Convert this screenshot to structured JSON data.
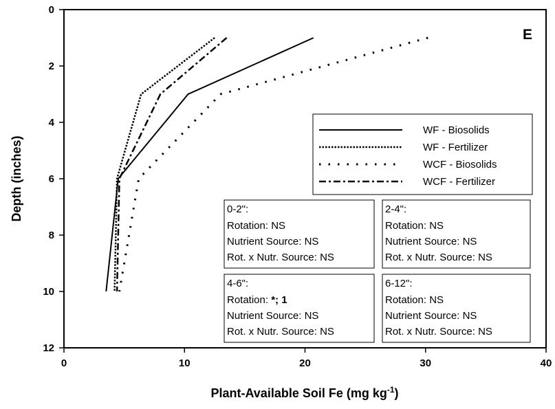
{
  "chart_data": {
    "type": "line",
    "panel_label": "E",
    "xlabel": "Plant-Available Soil Fe (mg kg",
    "xlabel_sup": "-1",
    "xlabel_close": ")",
    "ylabel": "Depth (inches)",
    "xlim": [
      0,
      40
    ],
    "ylim": [
      0,
      12
    ],
    "y_inverted": true,
    "xticks": [
      "0",
      "10",
      "20",
      "30",
      "40"
    ],
    "yticks": [
      "0",
      "2",
      "4",
      "6",
      "8",
      "10",
      "12"
    ],
    "grid": false,
    "legend_position": "right-middle",
    "series": [
      {
        "name": "WF - Biosolids",
        "style": "solid",
        "x": [
          20.7,
          10.3,
          4.5,
          3.5
        ],
        "y": [
          1,
          3,
          6,
          10
        ]
      },
      {
        "name": "WF - Fertilizer",
        "style": "dotted",
        "x": [
          12.5,
          6.4,
          4.4,
          4.2
        ],
        "y": [
          1,
          3,
          6,
          10
        ]
      },
      {
        "name": "WCF - Biosolids",
        "style": "sparse-dotted",
        "x": [
          30.2,
          13.0,
          6.2,
          4.6
        ],
        "y": [
          1,
          3,
          6,
          10
        ]
      },
      {
        "name": "WCF - Fertilizer",
        "style": "dash-dot",
        "x": [
          13.5,
          8.0,
          4.6,
          4.4
        ],
        "y": [
          1,
          3,
          6,
          10
        ]
      }
    ],
    "stat_boxes": [
      {
        "header": "0-2\":",
        "lines": [
          {
            "label": "Rotation: ",
            "value": "NS"
          },
          {
            "label": "Nutrient Source: ",
            "value": "NS"
          },
          {
            "label": "Rot. x Nutr. Source: ",
            "value": "NS"
          }
        ]
      },
      {
        "header": "2-4\":",
        "lines": [
          {
            "label": "Rotation: ",
            "value": "NS"
          },
          {
            "label": "Nutrient Source: ",
            "value": "NS"
          },
          {
            "label": "Rot. x Nutr. Source: ",
            "value": "NS"
          }
        ]
      },
      {
        "header": "4-6\":",
        "lines": [
          {
            "label": "Rotation: ",
            "value": "*; 1"
          },
          {
            "label": "Nutrient Source: ",
            "value": "NS"
          },
          {
            "label": "Rot. x Nutr. Source: ",
            "value": "NS"
          }
        ]
      },
      {
        "header": "6-12\":",
        "lines": [
          {
            "label": "Rotation: ",
            "value": "NS"
          },
          {
            "label": "Nutrient Source: ",
            "value": "NS"
          },
          {
            "label": "Rot. x Nutr. Source: ",
            "value": "NS"
          }
        ]
      }
    ]
  }
}
